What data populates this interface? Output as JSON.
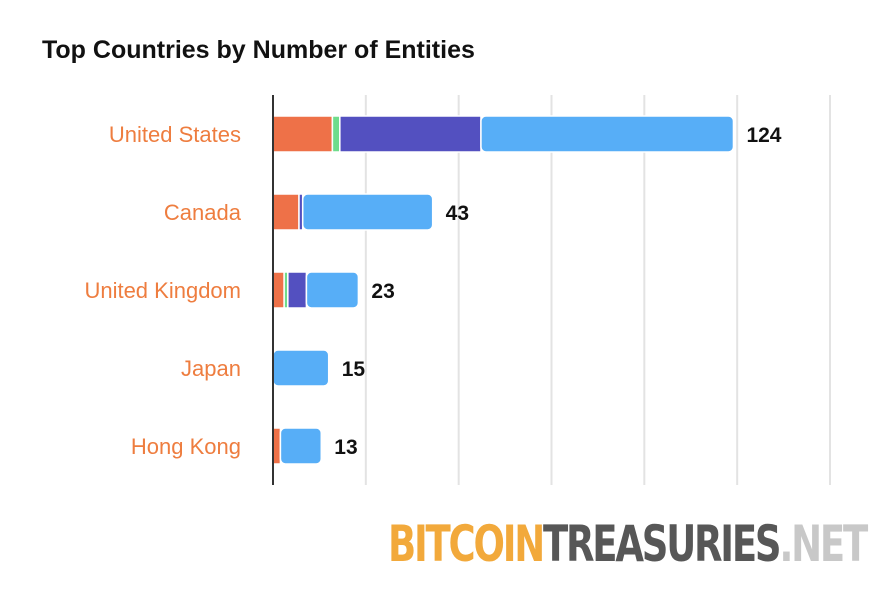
{
  "chart_data": {
    "type": "bar",
    "orientation": "horizontal",
    "stacked": true,
    "title": "Top Countries by Number of Entities",
    "categories": [
      "United States",
      "Canada",
      "United Kingdom",
      "Japan",
      "Hong Kong"
    ],
    "series": [
      {
        "color": "#ee7148",
        "values": [
          16,
          7,
          3,
          0,
          2
        ]
      },
      {
        "color": "#6fdc8c",
        "values": [
          2,
          0,
          1,
          0,
          0
        ]
      },
      {
        "color": "#5350c0",
        "values": [
          38,
          1,
          5,
          0,
          0
        ]
      },
      {
        "color": "#57aef7",
        "values": [
          68,
          35,
          14,
          15,
          11
        ]
      }
    ],
    "totals": [
      124,
      43,
      23,
      15,
      13
    ],
    "xlim": [
      0,
      150
    ],
    "grid": true,
    "category_label_color": "#ee7d3f"
  },
  "logo": {
    "part1": "BITCOIN",
    "part2": "TREASURIES",
    "part3": ".NET"
  }
}
